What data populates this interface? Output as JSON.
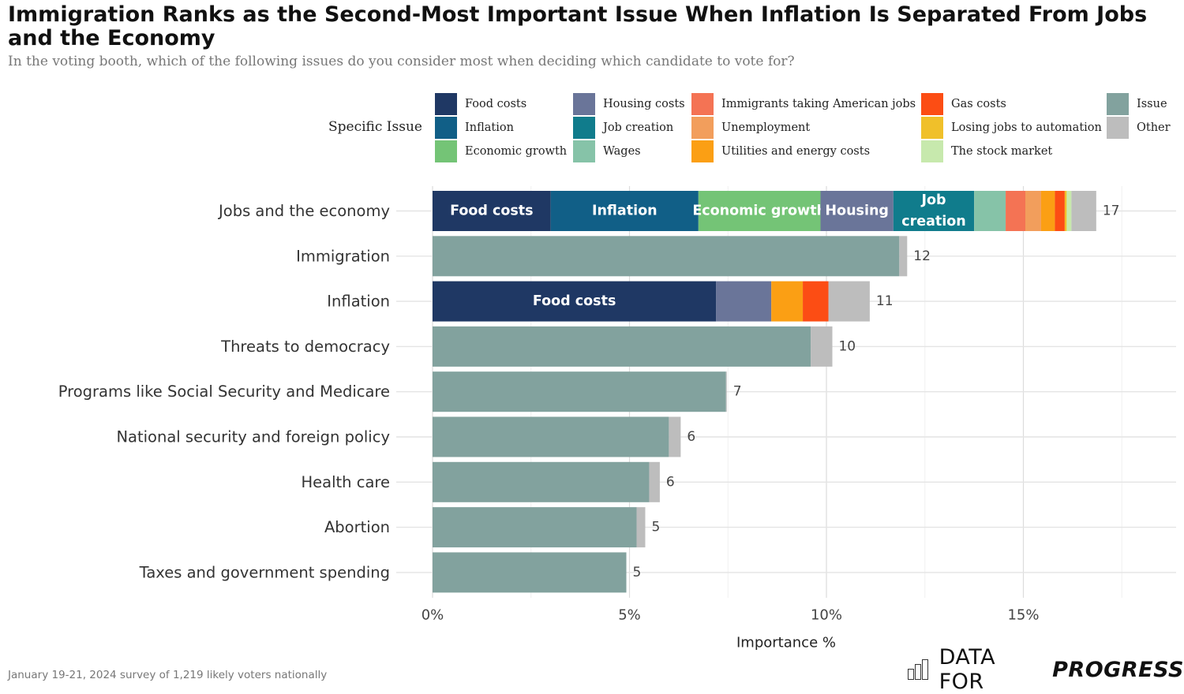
{
  "title": "Immigration Ranks as the Second-Most Important Issue When Inflation Is Separated From Jobs and the Economy",
  "subtitle": "In the voting booth, which of the following issues do you consider most when deciding which candidate to vote for?",
  "footnote": "January 19-21, 2024 survey of 1,219 likely voters nationally",
  "logo": {
    "text_regular": "DATA FOR",
    "text_bold": "PROGRESS",
    "icon": "bar-chart-logo-icon"
  },
  "legend": {
    "title": "Specific Issue",
    "items": [
      {
        "label": "Food costs",
        "color": "#1f3864"
      },
      {
        "label": "Inflation",
        "color": "#115f87"
      },
      {
        "label": "Economic growth",
        "color": "#74c476"
      },
      {
        "label": "Housing costs",
        "color": "#6a7599"
      },
      {
        "label": "Job creation",
        "color": "#107c8c"
      },
      {
        "label": "Wages",
        "color": "#86c3a8"
      },
      {
        "label": "Immigrants taking American jobs",
        "color": "#f47354"
      },
      {
        "label": "Unemployment",
        "color": "#f29e5c"
      },
      {
        "label": "Utilities and energy costs",
        "color": "#fb9f14"
      },
      {
        "label": "Gas costs",
        "color": "#fc4d14"
      },
      {
        "label": "Losing jobs to automation",
        "color": "#f0c02a"
      },
      {
        "label": "The stock market",
        "color": "#c7e9ad"
      },
      {
        "label": "Issue",
        "color": "#82a29e"
      },
      {
        "label": "Other",
        "color": "#bdbdbd"
      }
    ]
  },
  "chart_data": {
    "type": "bar",
    "orientation": "horizontal",
    "stacked": true,
    "xlabel": "Importance %",
    "xlim": [
      0,
      19
    ],
    "xticks": [
      0,
      5,
      10,
      15
    ],
    "xtick_labels": [
      "0%",
      "5%",
      "10%",
      "15%"
    ],
    "categories": [
      "Jobs and the economy",
      "Immigration",
      "Inflation",
      "Threats to democracy",
      "Programs like Social Security and Medicare",
      "National security and foreign policy",
      "Health care",
      "Abortion",
      "Taxes and government spending"
    ],
    "totals": [
      "17",
      "12",
      "11",
      "10",
      "7",
      "6",
      "6",
      "5",
      "5"
    ],
    "bars": [
      {
        "category": "Jobs and the economy",
        "segments": [
          {
            "series": "Food costs",
            "value": 3.0,
            "label": "Food costs"
          },
          {
            "series": "Inflation",
            "value": 3.75,
            "label": "Inflation"
          },
          {
            "series": "Economic growth",
            "value": 3.1,
            "label": "Economic growth"
          },
          {
            "series": "Housing costs",
            "value": 1.85,
            "label": "Housing"
          },
          {
            "series": "Job creation",
            "value": 2.05,
            "label": "Job creation"
          },
          {
            "series": "Wages",
            "value": 0.8
          },
          {
            "series": "Immigrants taking American jobs",
            "value": 0.5
          },
          {
            "series": "Unemployment",
            "value": 0.4
          },
          {
            "series": "Utilities and energy costs",
            "value": 0.35
          },
          {
            "series": "Gas costs",
            "value": 0.25
          },
          {
            "series": "Losing jobs to automation",
            "value": 0.05
          },
          {
            "series": "The stock market",
            "value": 0.12
          },
          {
            "series": "Other",
            "value": 0.63
          }
        ]
      },
      {
        "category": "Immigration",
        "segments": [
          {
            "series": "Issue",
            "value": 11.85
          },
          {
            "series": "Other",
            "value": 0.2
          }
        ]
      },
      {
        "category": "Inflation",
        "segments": [
          {
            "series": "Food costs",
            "value": 7.2,
            "label": "Food costs"
          },
          {
            "series": "Housing costs",
            "value": 1.4
          },
          {
            "series": "Utilities and energy costs",
            "value": 0.8
          },
          {
            "series": "Gas costs",
            "value": 0.65
          },
          {
            "series": "Other",
            "value": 1.05
          }
        ]
      },
      {
        "category": "Threats to democracy",
        "segments": [
          {
            "series": "Issue",
            "value": 9.6
          },
          {
            "series": "Other",
            "value": 0.55
          }
        ]
      },
      {
        "category": "Programs like Social Security and Medicare",
        "segments": [
          {
            "series": "Issue",
            "value": 7.45
          },
          {
            "series": "Other",
            "value": 0.02
          }
        ]
      },
      {
        "category": "National security and foreign policy",
        "segments": [
          {
            "series": "Issue",
            "value": 6.0
          },
          {
            "series": "Other",
            "value": 0.3
          }
        ]
      },
      {
        "category": "Health care",
        "segments": [
          {
            "series": "Issue",
            "value": 5.5
          },
          {
            "series": "Other",
            "value": 0.27
          }
        ]
      },
      {
        "category": "Abortion",
        "segments": [
          {
            "series": "Issue",
            "value": 5.18
          },
          {
            "series": "Other",
            "value": 0.22
          }
        ]
      },
      {
        "category": "Taxes and government spending",
        "segments": [
          {
            "series": "Issue",
            "value": 4.92
          }
        ]
      }
    ]
  }
}
